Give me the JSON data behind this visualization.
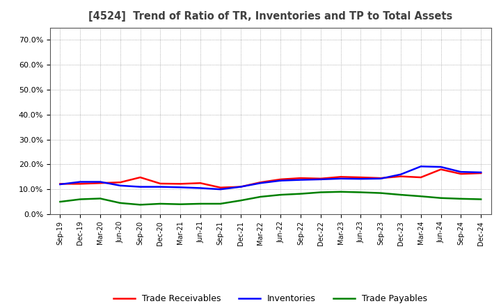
{
  "title": "[4524]  Trend of Ratio of TR, Inventories and TP to Total Assets",
  "x_labels": [
    "Sep-19",
    "Dec-19",
    "Mar-20",
    "Jun-20",
    "Sep-20",
    "Dec-20",
    "Mar-21",
    "Jun-21",
    "Sep-21",
    "Dec-21",
    "Mar-22",
    "Jun-22",
    "Sep-22",
    "Dec-22",
    "Mar-23",
    "Jun-23",
    "Sep-23",
    "Dec-23",
    "Mar-24",
    "Jun-24",
    "Sep-24",
    "Dec-24"
  ],
  "trade_receivables": [
    0.122,
    0.122,
    0.125,
    0.128,
    0.148,
    0.123,
    0.122,
    0.125,
    0.107,
    0.11,
    0.128,
    0.14,
    0.145,
    0.143,
    0.15,
    0.148,
    0.145,
    0.152,
    0.148,
    0.18,
    0.162,
    0.165
  ],
  "inventories": [
    0.12,
    0.13,
    0.13,
    0.115,
    0.11,
    0.11,
    0.108,
    0.105,
    0.1,
    0.11,
    0.125,
    0.135,
    0.138,
    0.14,
    0.143,
    0.142,
    0.143,
    0.16,
    0.192,
    0.19,
    0.17,
    0.168
  ],
  "trade_payables": [
    0.05,
    0.06,
    0.063,
    0.045,
    0.038,
    0.042,
    0.04,
    0.042,
    0.042,
    0.055,
    0.07,
    0.078,
    0.082,
    0.088,
    0.09,
    0.088,
    0.085,
    0.078,
    0.072,
    0.065,
    0.062,
    0.06
  ],
  "ylim": [
    0.0,
    0.75
  ],
  "yticks": [
    0.0,
    0.1,
    0.2,
    0.3,
    0.4,
    0.5,
    0.6,
    0.7
  ],
  "tr_color": "#ff0000",
  "inv_color": "#0000ff",
  "tp_color": "#008000",
  "line_width": 1.8,
  "bg_color": "#ffffff",
  "grid_color": "#999999",
  "title_color": "#404040",
  "legend_labels": [
    "Trade Receivables",
    "Inventories",
    "Trade Payables"
  ]
}
